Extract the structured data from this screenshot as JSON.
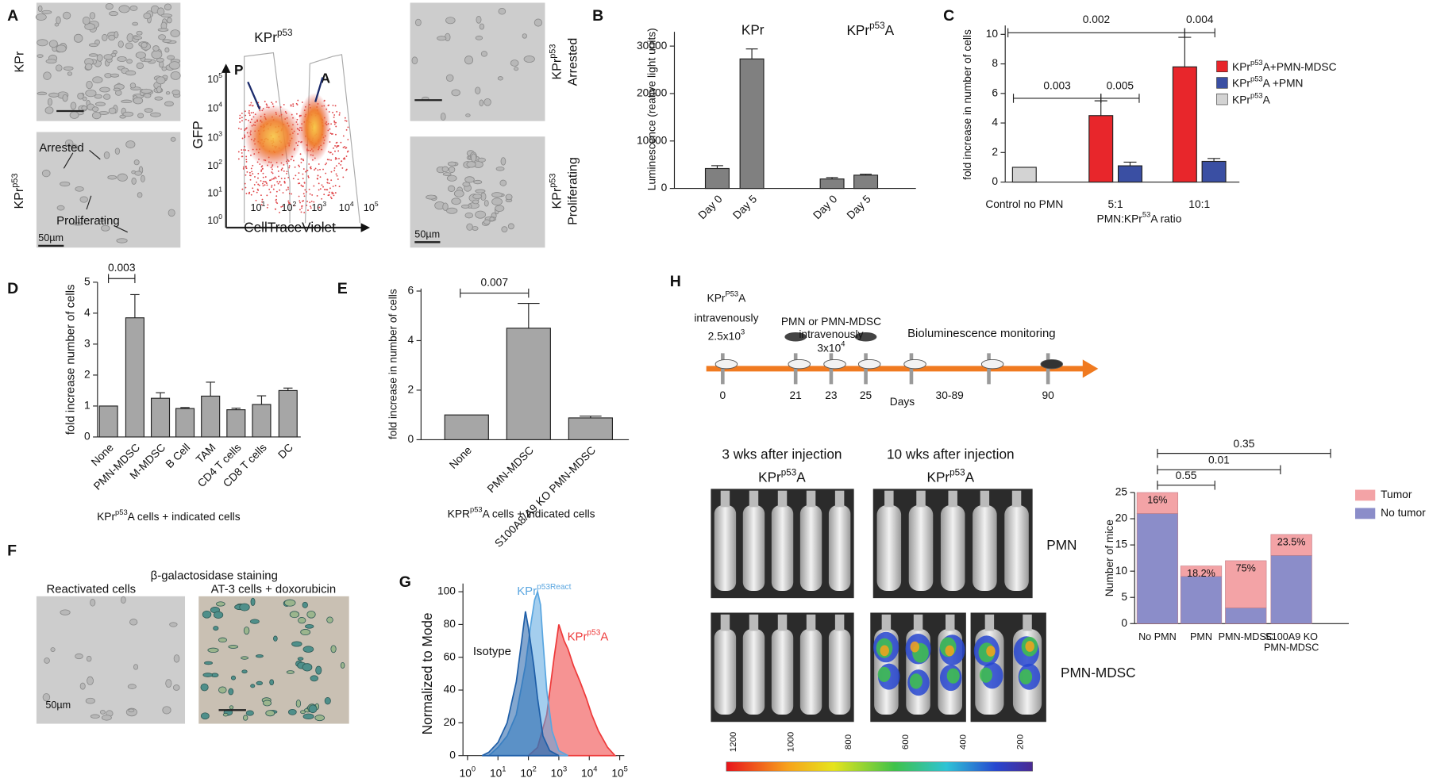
{
  "panel_letters": [
    "A",
    "B",
    "C",
    "D",
    "E",
    "F",
    "G",
    "H"
  ],
  "panel_a": {
    "row_labels": [
      "KPr",
      [
        "KPr",
        "p53"
      ]
    ],
    "photo_labels": [
      "Arrested",
      "Proliferating"
    ],
    "scale_bar": "50µm",
    "flow": {
      "title": [
        "KPr",
        "p53"
      ],
      "y_label": "GFP",
      "x_label": "CellTraceViolet",
      "gates": [
        "P",
        "A"
      ],
      "yticks": [
        [
          "10",
          "5"
        ],
        [
          "10",
          "4"
        ],
        [
          "10",
          "3"
        ],
        [
          "10",
          "2"
        ],
        [
          "10",
          "1"
        ],
        [
          "10",
          "0"
        ]
      ],
      "xticks": [
        [
          "10",
          "1"
        ],
        [
          "10",
          "2"
        ],
        [
          "10",
          "3"
        ],
        [
          "10",
          "4"
        ],
        [
          "10",
          "5"
        ]
      ]
    },
    "right_labels": [
      {
        "line1": [
          "KPr",
          "p53"
        ],
        "line2": "Arrested"
      },
      {
        "line1": [
          "KPr",
          "p53"
        ],
        "line2": "Proliferating"
      }
    ],
    "right_scale_bar": "50µm"
  },
  "chart_data": [
    {
      "type": "bar",
      "y_label": "Luminescence (reative light units)",
      "groups": [
        "KPr",
        [
          "KPr",
          "p53",
          "A"
        ]
      ],
      "categories": [
        "Day 0",
        "Day 5",
        "Day 0",
        "Day 5"
      ],
      "values": [
        4200,
        27300,
        2000,
        2800
      ],
      "errors": [
        600,
        2100,
        300,
        200
      ],
      "color": "#808080",
      "ylim": [
        0,
        33000
      ],
      "yticks": [
        0,
        10000,
        20000,
        30000
      ]
    },
    {
      "type": "grouped_bar",
      "y_label": "fold increase in number of cells",
      "x_label": [
        "PMN:KPr",
        "53",
        "A ratio"
      ],
      "categories": [
        "Control no PMN",
        "5:1",
        "10:1"
      ],
      "series": [
        {
          "name": [
            "KPr",
            "p53",
            "A+PMN-MDSC"
          ],
          "color": "#e8262b",
          "values": [
            null,
            4.5,
            7.8
          ],
          "errors": [
            null,
            1.0,
            2.0
          ]
        },
        {
          "name": [
            "KPr",
            "p53",
            "A +PMN"
          ],
          "color": "#3a4fa3",
          "values": [
            null,
            1.1,
            1.4
          ],
          "errors": [
            null,
            0.25,
            0.2
          ]
        },
        {
          "name": [
            "KPr",
            "p53",
            "A"
          ],
          "color": "#d3d3d3",
          "values": [
            1.0,
            null,
            null
          ],
          "errors": [
            null,
            null,
            null
          ]
        }
      ],
      "ylim": [
        0,
        10.6
      ],
      "yticks": [
        0,
        2,
        4,
        6,
        8,
        10
      ],
      "comparisons": [
        "0.002",
        "0.004",
        "0.003",
        "0.005"
      ]
    },
    {
      "type": "bar",
      "y_label": "fold increase number of cells",
      "x_label": [
        "KPr",
        "p53",
        "A cells + indicated cells"
      ],
      "categories": [
        "None",
        "PMN-MDSC",
        "M-MDSC",
        "B Cell",
        "TAM",
        "CD4 T cells",
        "CD8 T cells",
        "DC"
      ],
      "values": [
        1.0,
        3.85,
        1.25,
        0.92,
        1.32,
        0.88,
        1.05,
        1.5
      ],
      "errors": [
        null,
        0.75,
        0.18,
        0.03,
        0.45,
        0.05,
        0.28,
        0.08
      ],
      "color": "#a6a6a6",
      "ylim": [
        0,
        5
      ],
      "yticks": [
        0,
        1,
        2,
        3,
        4,
        5
      ],
      "comparisons": [
        "0.003"
      ]
    },
    {
      "type": "bar",
      "y_label": "fold increase in number of cells",
      "x_label": [
        "KPR",
        "p53",
        "A cells + indicated cells"
      ],
      "categories": [
        "None",
        "PMN-MDSC",
        "S100A8/A9 KO PMN-MDSC"
      ],
      "values": [
        1.0,
        4.5,
        0.88
      ],
      "errors": [
        null,
        1.0,
        0.07
      ],
      "color": "#a6a6a6",
      "ylim": [
        0,
        6.1
      ],
      "yticks": [
        0,
        2,
        4,
        6
      ],
      "comparisons": [
        "0.007"
      ]
    },
    {
      "type": "area",
      "y_label": "Normalized to Mode",
      "xscale": "log",
      "xlim": [
        1,
        100000
      ],
      "xticks": [
        {
          "value": 1,
          "label": [
            "10",
            "0"
          ]
        },
        {
          "value": 10,
          "label": [
            "10",
            "1"
          ]
        },
        {
          "value": 100,
          "label": [
            "10",
            "2"
          ]
        },
        {
          "value": 1000,
          "label": [
            "10",
            "3"
          ]
        },
        {
          "value": 10000,
          "label": [
            "10",
            "4"
          ]
        },
        {
          "value": 100000,
          "label": [
            "10",
            "5"
          ]
        }
      ],
      "ylim": [
        0,
        105
      ],
      "yticks": [
        0,
        20,
        40,
        60,
        80,
        100
      ],
      "series": [
        {
          "name": "Isotype",
          "color": "#1f5fa8",
          "x": [
            3,
            5,
            10,
            20,
            40,
            60,
            80,
            100,
            150,
            200,
            300,
            500,
            1000
          ],
          "values": [
            0,
            2,
            8,
            20,
            45,
            70,
            88,
            78,
            55,
            35,
            12,
            3,
            0
          ]
        },
        {
          "name": [
            "KPr",
            "p53React"
          ],
          "color": "#5aa6e0",
          "x": [
            5,
            10,
            20,
            40,
            80,
            120,
            160,
            200,
            250,
            300,
            400,
            600,
            1000,
            2000
          ],
          "values": [
            0,
            5,
            12,
            25,
            55,
            80,
            95,
            100,
            92,
            70,
            40,
            15,
            3,
            0
          ]
        },
        {
          "name": [
            "KPr",
            "p53",
            "A"
          ],
          "color": "#ee3a3a",
          "x": [
            100,
            200,
            400,
            700,
            1000,
            1500,
            2000,
            3000,
            5000,
            8000,
            12000,
            20000,
            40000,
            70000
          ],
          "values": [
            0,
            5,
            25,
            60,
            80,
            70,
            65,
            55,
            45,
            35,
            25,
            15,
            5,
            0
          ]
        }
      ]
    },
    {
      "type": "stacked_bar",
      "y_label": "Number of mice",
      "categories": [
        "No PMN",
        "PMN",
        "PMN-MDSC",
        [
          "S100A9 KO",
          "PMN-MDSC"
        ]
      ],
      "series": [
        {
          "name": "No tumor",
          "color": "#8b8dc9",
          "values": [
            21,
            9,
            3,
            13
          ]
        },
        {
          "name": "Tumor",
          "color": "#f3a3a6",
          "values": [
            4,
            2,
            9,
            4
          ]
        }
      ],
      "tumor_percent_labels": [
        "16%",
        "18.2%",
        "75%",
        "23.5%"
      ],
      "ylim": [
        0,
        25
      ],
      "yticks": [
        0,
        5,
        10,
        15,
        20,
        25
      ],
      "comparisons": [
        "0.55",
        "0.01",
        "0.35"
      ]
    }
  ],
  "panel_f": {
    "title": "β-galactosidase staining",
    "subtitles": [
      "Reactivated cells",
      "AT-3 cells + doxorubicin"
    ],
    "scale_bar": "50µm"
  },
  "panel_h": {
    "timeline": {
      "first_injection": [
        [
          "KPr",
          "P53",
          "A"
        ],
        "intravenously",
        [
          "2.5x10",
          "3"
        ]
      ],
      "second_injection": [
        "PMN or PMN-MDSC",
        "intravenously",
        [
          "3x10",
          "4"
        ]
      ],
      "monitoring": "Bioluminescence monitoring",
      "days": [
        "0",
        "21",
        "23",
        "25",
        "30-89",
        "90"
      ],
      "axis_label": "Days"
    },
    "imaging": {
      "columns": [
        "3 wks after injection",
        "10 wks after injection"
      ],
      "cell_line": [
        [
          "KPr",
          "p53",
          "A"
        ],
        [
          "KPr",
          "p53",
          "A"
        ]
      ],
      "rows": [
        "PMN",
        "PMN-MDSC"
      ],
      "colorbar_ticks": [
        1200,
        1000,
        800,
        600,
        400,
        200
      ]
    }
  }
}
